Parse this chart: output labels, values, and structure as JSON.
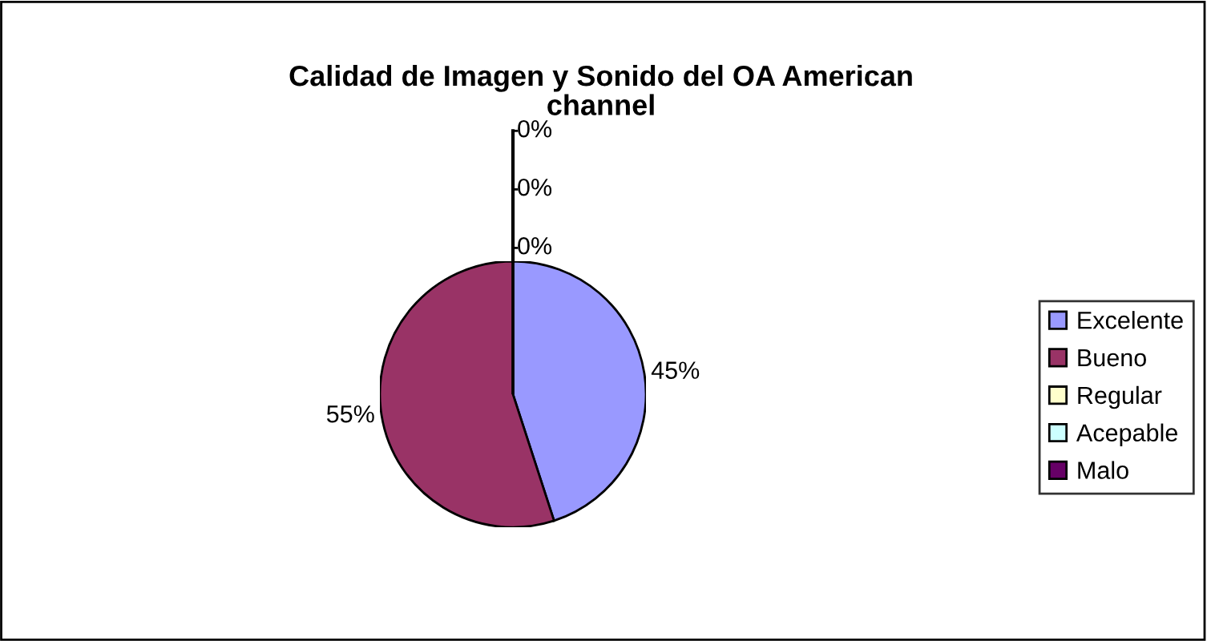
{
  "chart_data": {
    "type": "pie",
    "title": "Calidad de Imagen y Sonido del OA American channel",
    "categories": [
      "Excelente",
      "Bueno",
      "Regular",
      "Acepable",
      "Malo"
    ],
    "values": [
      45,
      55,
      0,
      0,
      0
    ],
    "colors": [
      "#9999ff",
      "#993366",
      "#ffffcc",
      "#ccffff",
      "#660066"
    ],
    "value_labels": [
      "45%",
      "55%",
      "0%",
      "0%",
      "0%"
    ],
    "legend": "right"
  }
}
